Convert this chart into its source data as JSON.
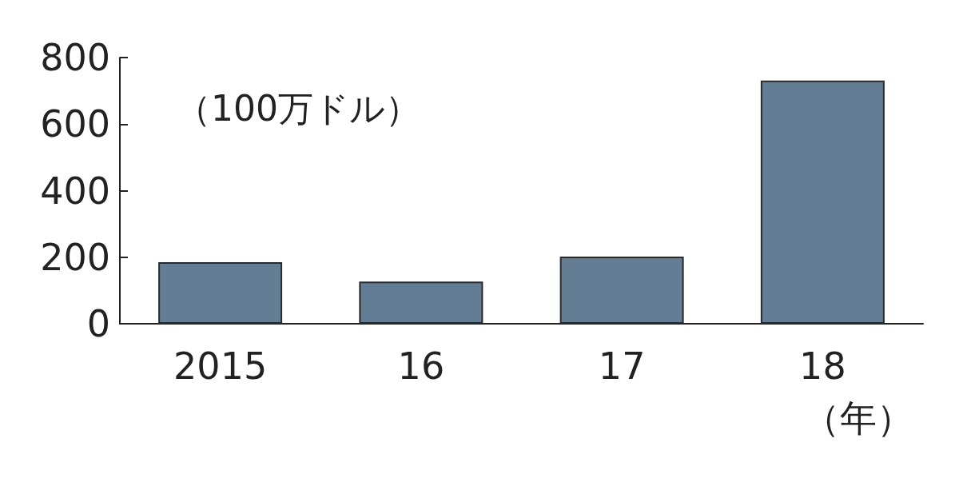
{
  "chart_data": {
    "type": "bar",
    "ylabel": "（100万ドル）",
    "xlabel": "（年）",
    "categories": [
      "2015",
      "16",
      "17",
      "18"
    ],
    "values": [
      185,
      127,
      202,
      731
    ],
    "color": "#627d94",
    "ylim": [
      0,
      800
    ],
    "yticks": [
      0,
      200,
      400,
      600,
      800
    ],
    "grid": false
  }
}
